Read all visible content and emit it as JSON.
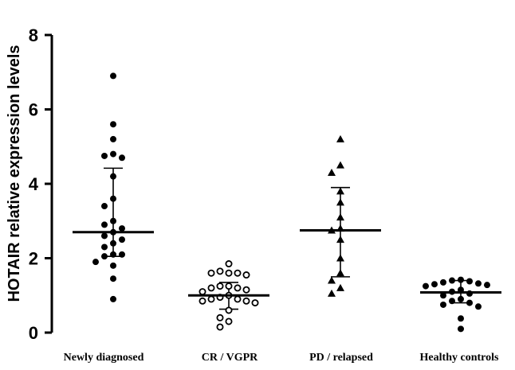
{
  "chart_data": {
    "type": "scatter",
    "title": "",
    "xlabel": "",
    "ylabel": "HOTAIR relative expression levels",
    "ylim": [
      0,
      8
    ],
    "yticks": [
      "0",
      "2",
      "4",
      "6",
      "8"
    ],
    "categories": [
      "Newly diagnosed",
      "CR / VGPR",
      "PD / relapsed",
      "Healthy controls"
    ],
    "series": [
      {
        "name": "Newly diagnosed",
        "marker": "filled-circle",
        "mean": 2.7,
        "sd_upper": 4.42,
        "sd_lower": 2.05,
        "values": [
          6.9,
          5.6,
          5.2,
          4.8,
          4.75,
          4.7,
          4.2,
          3.6,
          3.4,
          3.0,
          2.9,
          2.8,
          2.7,
          2.6,
          2.5,
          2.4,
          2.3,
          2.1,
          2.1,
          2.05,
          1.9,
          1.8,
          1.45,
          0.9
        ]
      },
      {
        "name": "CR / VGPR",
        "marker": "open-circle",
        "mean": 1.0,
        "sd_upper": 1.35,
        "sd_lower": 0.63,
        "values": [
          1.85,
          1.65,
          1.6,
          1.6,
          1.6,
          1.55,
          1.25,
          1.25,
          1.2,
          1.2,
          1.15,
          1.1,
          1.0,
          0.95,
          0.9,
          0.9,
          0.85,
          0.85,
          0.8,
          0.6,
          0.4,
          0.3,
          0.15
        ]
      },
      {
        "name": "PD / relapsed",
        "marker": "filled-triangle",
        "mean": 2.75,
        "sd_upper": 3.9,
        "sd_lower": 1.5,
        "values": [
          5.2,
          4.5,
          4.3,
          3.8,
          3.5,
          3.1,
          2.8,
          2.75,
          2.5,
          2.0,
          1.6,
          1.4,
          1.2,
          1.05
        ]
      },
      {
        "name": "Healthy controls",
        "marker": "filled-circle",
        "mean": 1.08,
        "sd_upper": 1.4,
        "sd_lower": 0.8,
        "values": [
          1.42,
          1.4,
          1.38,
          1.35,
          1.32,
          1.3,
          1.28,
          1.25,
          1.15,
          1.1,
          1.05,
          1.0,
          0.9,
          0.85,
          0.8,
          0.75,
          0.7,
          0.38,
          0.1
        ]
      }
    ]
  }
}
